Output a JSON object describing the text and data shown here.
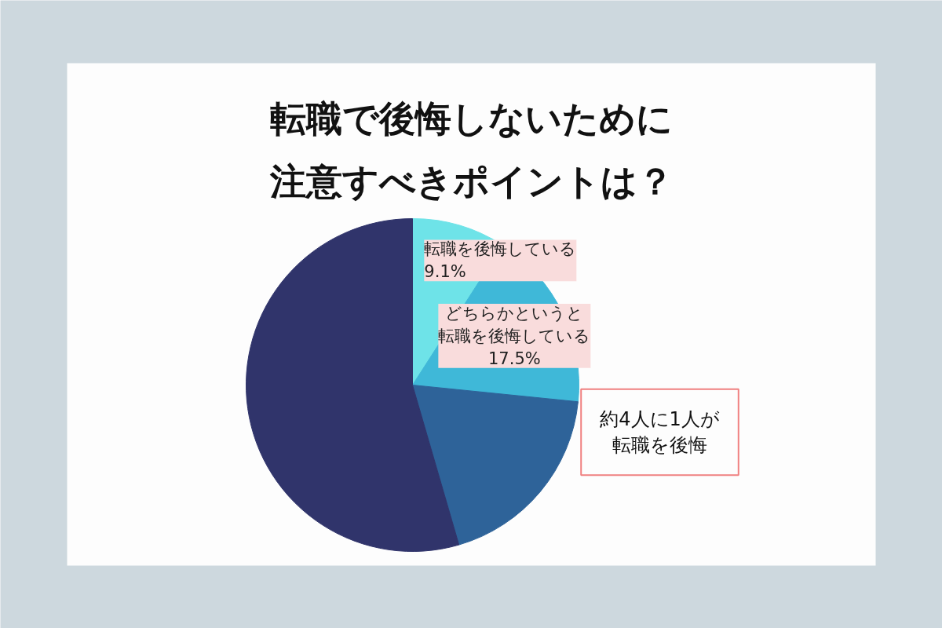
{
  "chart_data": {
    "type": "pie",
    "title": "転職で後悔しないために注意すべきポイントは？",
    "categories": [
      "転職を後悔している",
      "どちらかというと転職を後悔している",
      null,
      null
    ],
    "values": [
      9.1,
      17.5,
      18.9,
      54.5
    ],
    "colors": [
      "#6ee3e8",
      "#3fb8d8",
      "#2e6399",
      "#30346b"
    ],
    "value_labels": [
      "9.1%",
      "17.5%",
      null,
      null
    ],
    "annotations": [
      "約4人に1人が転職を後悔"
    ]
  }
}
